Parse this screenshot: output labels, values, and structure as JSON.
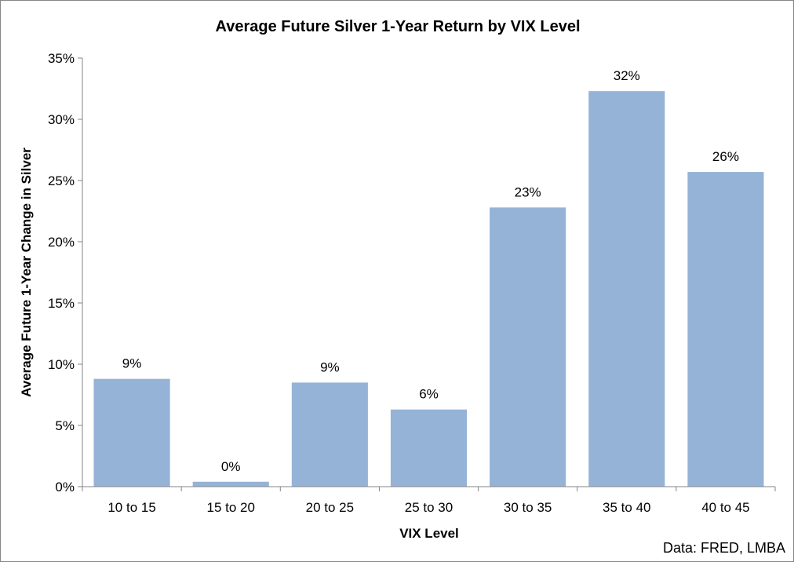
{
  "chart_data": {
    "type": "bar",
    "title": "Average Future Silver 1-Year Return by VIX Level",
    "xlabel": "VIX Level",
    "ylabel": "Average Future 1-Year Change in  Silver",
    "categories": [
      "10 to 15",
      "15 to 20",
      "20 to 25",
      "25 to 30",
      "30 to 35",
      "35 to 40",
      "40 to 45"
    ],
    "values": [
      8.8,
      0.4,
      8.5,
      6.3,
      22.8,
      32.3,
      25.7
    ],
    "data_labels": [
      "9%",
      "0%",
      "9%",
      "6%",
      "23%",
      "32%",
      "26%"
    ],
    "ylim": [
      0,
      35
    ],
    "yticks": [
      0,
      5,
      10,
      15,
      20,
      25,
      30,
      35
    ],
    "ytick_labels": [
      "0%",
      "5%",
      "10%",
      "15%",
      "20%",
      "25%",
      "30%",
      "35%"
    ],
    "grid": false,
    "legend": "none",
    "bar_color": "#95B3D7",
    "source": "Data: FRED, LMBA"
  }
}
